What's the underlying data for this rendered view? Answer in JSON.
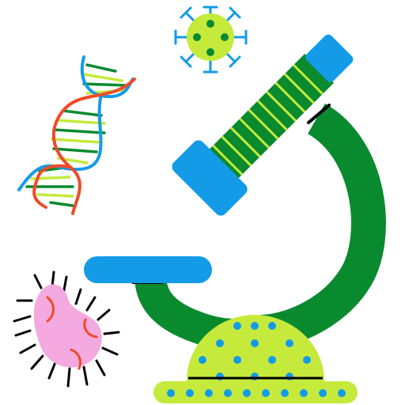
{
  "colors": {
    "dark_green": "#0a8a2e",
    "lime": "#c5ea3c",
    "blue": "#149be8",
    "red_orange": "#f04a28",
    "pink": "#f4a9e0",
    "black": "#000000",
    "white": "#ffffff"
  },
  "icons": [
    "microscope-icon",
    "virus-icon",
    "dna-icon",
    "bacteria-icon"
  ]
}
